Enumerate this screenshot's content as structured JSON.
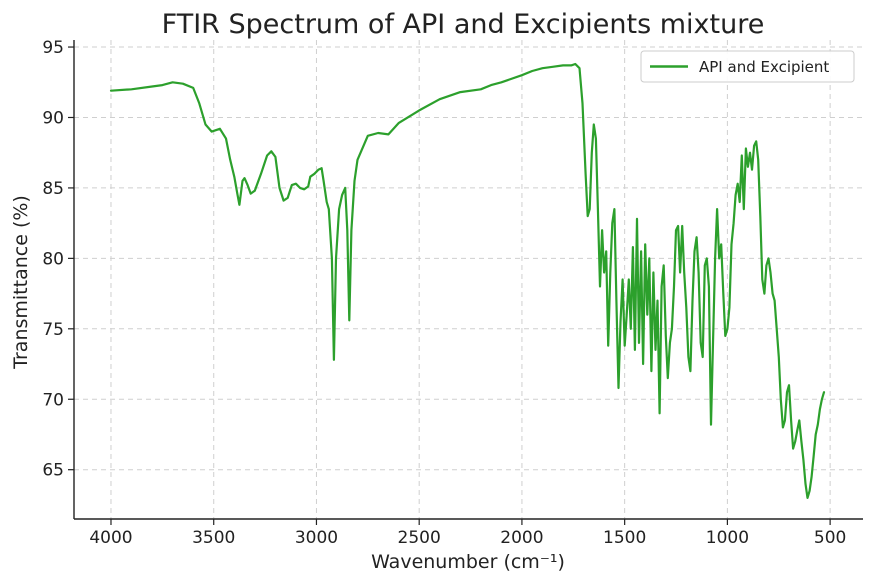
{
  "chart_data": {
    "type": "line",
    "title": "FTIR Spectrum of API and Excipients mixture",
    "xlabel": "Wavenumber (cm⁻¹)",
    "ylabel": "Transmittance (%)",
    "xlim": [
      4180,
      340
    ],
    "ylim": [
      61.5,
      95.5
    ],
    "x_reversed": true,
    "grid": true,
    "legend_position": "top-right",
    "xticks": [
      4000,
      3500,
      3000,
      2500,
      2000,
      1500,
      1000,
      500
    ],
    "xtick_labels": [
      "4000",
      "3500",
      "3000",
      "2500",
      "2000",
      "1500",
      "1000",
      "500"
    ],
    "yticks": [
      65,
      70,
      75,
      80,
      85,
      90,
      95
    ],
    "ytick_labels": [
      "65",
      "70",
      "75",
      "80",
      "85",
      "90",
      "95"
    ],
    "series": [
      {
        "name": "API and Excipient",
        "color": "#2ca02c",
        "points": [
          [
            4000,
            91.9
          ],
          [
            3900,
            92.0
          ],
          [
            3800,
            92.2
          ],
          [
            3750,
            92.3
          ],
          [
            3700,
            92.5
          ],
          [
            3650,
            92.4
          ],
          [
            3600,
            92.1
          ],
          [
            3570,
            91.0
          ],
          [
            3540,
            89.5
          ],
          [
            3510,
            89.0
          ],
          [
            3470,
            89.2
          ],
          [
            3440,
            88.5
          ],
          [
            3420,
            87.0
          ],
          [
            3400,
            85.8
          ],
          [
            3385,
            84.6
          ],
          [
            3375,
            83.8
          ],
          [
            3360,
            85.5
          ],
          [
            3350,
            85.7
          ],
          [
            3335,
            85.2
          ],
          [
            3320,
            84.6
          ],
          [
            3300,
            84.8
          ],
          [
            3270,
            86.0
          ],
          [
            3240,
            87.3
          ],
          [
            3220,
            87.6
          ],
          [
            3200,
            87.2
          ],
          [
            3180,
            85.0
          ],
          [
            3160,
            84.1
          ],
          [
            3140,
            84.3
          ],
          [
            3120,
            85.2
          ],
          [
            3100,
            85.3
          ],
          [
            3080,
            85.0
          ],
          [
            3060,
            84.9
          ],
          [
            3040,
            85.1
          ],
          [
            3030,
            85.8
          ],
          [
            3010,
            86.0
          ],
          [
            2990,
            86.3
          ],
          [
            2975,
            86.4
          ],
          [
            2965,
            85.5
          ],
          [
            2950,
            84.0
          ],
          [
            2940,
            83.5
          ],
          [
            2925,
            80.0
          ],
          [
            2915,
            72.8
          ],
          [
            2905,
            80.0
          ],
          [
            2890,
            83.5
          ],
          [
            2875,
            84.5
          ],
          [
            2860,
            85.0
          ],
          [
            2850,
            82.0
          ],
          [
            2840,
            75.6
          ],
          [
            2830,
            82.0
          ],
          [
            2815,
            85.5
          ],
          [
            2800,
            87.0
          ],
          [
            2750,
            88.7
          ],
          [
            2700,
            88.9
          ],
          [
            2650,
            88.8
          ],
          [
            2600,
            89.6
          ],
          [
            2500,
            90.5
          ],
          [
            2400,
            91.3
          ],
          [
            2300,
            91.8
          ],
          [
            2200,
            92.0
          ],
          [
            2150,
            92.3
          ],
          [
            2100,
            92.5
          ],
          [
            2000,
            93.0
          ],
          [
            1950,
            93.3
          ],
          [
            1900,
            93.5
          ],
          [
            1850,
            93.6
          ],
          [
            1800,
            93.7
          ],
          [
            1760,
            93.7
          ],
          [
            1740,
            93.8
          ],
          [
            1720,
            93.5
          ],
          [
            1705,
            91.0
          ],
          [
            1690,
            86.0
          ],
          [
            1680,
            83.0
          ],
          [
            1670,
            83.5
          ],
          [
            1660,
            87.5
          ],
          [
            1650,
            89.5
          ],
          [
            1640,
            88.5
          ],
          [
            1630,
            83.5
          ],
          [
            1620,
            78.0
          ],
          [
            1610,
            82.0
          ],
          [
            1600,
            79.0
          ],
          [
            1590,
            80.5
          ],
          [
            1580,
            73.8
          ],
          [
            1570,
            79.0
          ],
          [
            1560,
            82.5
          ],
          [
            1550,
            83.5
          ],
          [
            1540,
            77.0
          ],
          [
            1530,
            70.8
          ],
          [
            1520,
            75.5
          ],
          [
            1510,
            78.5
          ],
          [
            1500,
            73.8
          ],
          [
            1490,
            76.0
          ],
          [
            1480,
            78.5
          ],
          [
            1470,
            75.0
          ],
          [
            1460,
            80.8
          ],
          [
            1450,
            73.5
          ],
          [
            1440,
            82.8
          ],
          [
            1430,
            74.0
          ],
          [
            1420,
            80.5
          ],
          [
            1410,
            72.5
          ],
          [
            1400,
            81.0
          ],
          [
            1390,
            76.0
          ],
          [
            1380,
            80.0
          ],
          [
            1370,
            72.0
          ],
          [
            1360,
            79.0
          ],
          [
            1350,
            73.5
          ],
          [
            1340,
            77.0
          ],
          [
            1330,
            69.0
          ],
          [
            1320,
            78.0
          ],
          [
            1310,
            79.5
          ],
          [
            1300,
            74.5
          ],
          [
            1290,
            71.5
          ],
          [
            1280,
            74.0
          ],
          [
            1270,
            75.0
          ],
          [
            1260,
            78.0
          ],
          [
            1250,
            82.0
          ],
          [
            1240,
            82.3
          ],
          [
            1230,
            79.0
          ],
          [
            1220,
            82.3
          ],
          [
            1210,
            79.0
          ],
          [
            1200,
            76.5
          ],
          [
            1190,
            73.0
          ],
          [
            1180,
            72.0
          ],
          [
            1170,
            77.0
          ],
          [
            1160,
            80.5
          ],
          [
            1150,
            81.5
          ],
          [
            1140,
            79.0
          ],
          [
            1130,
            74.0
          ],
          [
            1120,
            73.0
          ],
          [
            1110,
            79.5
          ],
          [
            1100,
            80.0
          ],
          [
            1090,
            78.0
          ],
          [
            1080,
            68.2
          ],
          [
            1070,
            74.0
          ],
          [
            1060,
            80.0
          ],
          [
            1050,
            83.5
          ],
          [
            1040,
            80.0
          ],
          [
            1030,
            81.0
          ],
          [
            1020,
            77.5
          ],
          [
            1010,
            74.5
          ],
          [
            1000,
            75.0
          ],
          [
            990,
            76.5
          ],
          [
            980,
            81.0
          ],
          [
            970,
            82.5
          ],
          [
            960,
            84.5
          ],
          [
            950,
            85.3
          ],
          [
            940,
            84.0
          ],
          [
            930,
            87.3
          ],
          [
            920,
            83.5
          ],
          [
            910,
            87.8
          ],
          [
            900,
            86.5
          ],
          [
            890,
            87.5
          ],
          [
            880,
            86.3
          ],
          [
            870,
            88.0
          ],
          [
            860,
            88.3
          ],
          [
            850,
            87.0
          ],
          [
            840,
            83.0
          ],
          [
            830,
            78.5
          ],
          [
            820,
            77.5
          ],
          [
            810,
            79.5
          ],
          [
            800,
            80.0
          ],
          [
            790,
            79.0
          ],
          [
            780,
            77.5
          ],
          [
            770,
            77.0
          ],
          [
            760,
            75.0
          ],
          [
            750,
            73.0
          ],
          [
            740,
            70.0
          ],
          [
            730,
            68.0
          ],
          [
            720,
            68.5
          ],
          [
            710,
            70.5
          ],
          [
            700,
            71.0
          ],
          [
            690,
            68.5
          ],
          [
            680,
            66.5
          ],
          [
            670,
            67.0
          ],
          [
            660,
            67.8
          ],
          [
            650,
            68.5
          ],
          [
            640,
            67.0
          ],
          [
            630,
            65.7
          ],
          [
            620,
            64.0
          ],
          [
            610,
            63.0
          ],
          [
            600,
            63.5
          ],
          [
            590,
            64.5
          ],
          [
            580,
            66.0
          ],
          [
            570,
            67.5
          ],
          [
            560,
            68.2
          ],
          [
            550,
            69.3
          ],
          [
            540,
            70.0
          ],
          [
            530,
            70.5
          ]
        ]
      }
    ]
  }
}
